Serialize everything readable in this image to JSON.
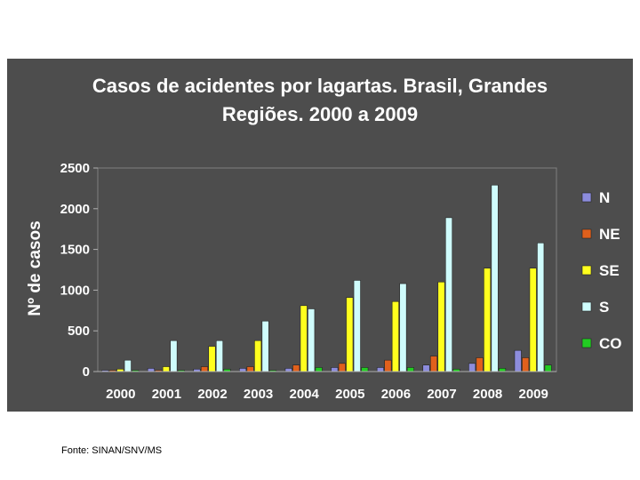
{
  "chart_data": {
    "type": "bar",
    "title_lines": [
      "Casos de acidentes por lagartas. Brasil, Grandes",
      "Regiões. 2000 a 2009"
    ],
    "xlabel": "",
    "ylabel": "Nº de casos",
    "ylim": [
      0,
      2500
    ],
    "yticks": [
      "0",
      "500",
      "1000",
      "1500",
      "2000",
      "2500"
    ],
    "categories": [
      "2000",
      "2001",
      "2002",
      "2003",
      "2004",
      "2005",
      "2006",
      "2007",
      "2008",
      "2009"
    ],
    "series": [
      {
        "name": "N",
        "color": "#8c8cdc",
        "values": [
          10,
          40,
          30,
          40,
          40,
          50,
          50,
          80,
          100,
          260
        ]
      },
      {
        "name": "NE",
        "color": "#e0601c",
        "values": [
          10,
          10,
          60,
          60,
          80,
          100,
          140,
          190,
          170,
          170
        ]
      },
      {
        "name": "SE",
        "color": "#ffff1e",
        "values": [
          30,
          60,
          310,
          380,
          810,
          910,
          860,
          1100,
          1270,
          1270
        ]
      },
      {
        "name": "S",
        "color": "#cffcfc",
        "values": [
          140,
          380,
          380,
          620,
          770,
          1120,
          1080,
          1890,
          2290,
          1580
        ]
      },
      {
        "name": "CO",
        "color": "#22cc22",
        "values": [
          5,
          10,
          30,
          10,
          50,
          50,
          50,
          30,
          40,
          80
        ]
      }
    ],
    "grid": false,
    "legend_position": "right"
  },
  "footer": {
    "source": "Fonte: SINAN/SNV/MS"
  }
}
